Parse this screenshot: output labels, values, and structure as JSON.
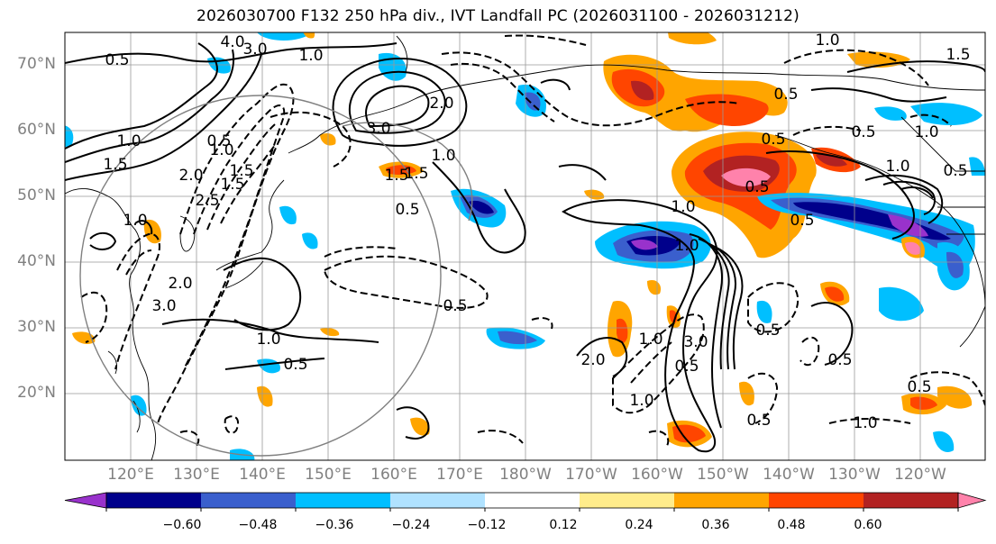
{
  "title": "2026030700 F132 250 hPa div., IVT Landfall PC (2026031100 - 2026031212)",
  "lat_labels": [
    "70°N",
    "60°N",
    "50°N",
    "40°N",
    "30°N",
    "20°N"
  ],
  "lon_labels": [
    "120°E",
    "130°E",
    "140°E",
    "150°E",
    "160°E",
    "170°E",
    "180°W",
    "170°W",
    "160°W",
    "150°W",
    "140°W",
    "130°W",
    "120°W"
  ],
  "colorbar": {
    "colors": [
      "#9932cc",
      "#00008b",
      "#3a5fcd",
      "#00bfff",
      "#b0e2ff",
      "#ffffff",
      "#ffec8b",
      "#ffa500",
      "#ff4500",
      "#b22222",
      "#ff82ab"
    ],
    "tick_labels": [
      "−0.60",
      "−0.48",
      "−0.36",
      "−0.24",
      "−0.12",
      "0.12",
      "0.24",
      "0.36",
      "0.48",
      "0.60"
    ]
  },
  "contour_labels": [
    "4.0",
    "3.0",
    "1.0",
    "0.5",
    "1.5",
    "1.0",
    "3.0",
    "2.0",
    "1.5",
    "1.0",
    "0.5",
    "1.5",
    "1.5",
    "2.0",
    "3.0",
    "1.0",
    "0.5",
    "2.5",
    "2.0",
    "1.0",
    "1.5",
    "1.0",
    "0.5",
    "0.5",
    "1.0",
    "0.5",
    "0.5",
    "0.5",
    "1.0",
    "1.5",
    "0.5",
    "1.0",
    "0.5",
    "1.0",
    "0.5",
    "1.0",
    "0.5",
    "2.0",
    "1.0",
    "3.0",
    "0.5",
    "0.5",
    "1.0",
    "0.5",
    "0.5",
    "1.0"
  ]
}
